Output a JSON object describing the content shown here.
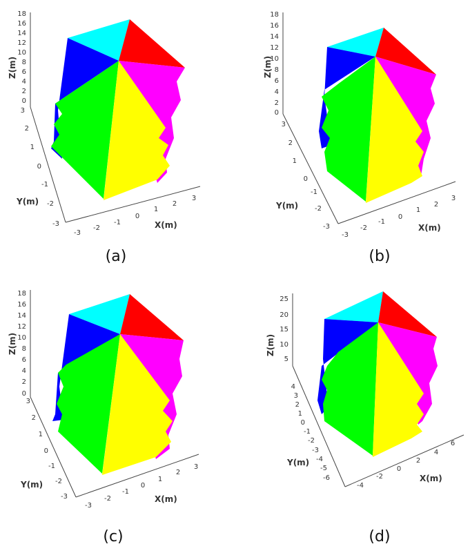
{
  "figure": {
    "panels": [
      {
        "caption": "(a)",
        "z_label": "Z(m)",
        "x_label": "X(m)",
        "y_label": "Y(m)",
        "z_ticks": [
          "18",
          "16",
          "14",
          "12",
          "10",
          "8",
          "6",
          "4",
          "2",
          "0"
        ],
        "y_ticks": [
          "3",
          "2",
          "1",
          "0",
          "-1",
          "-2",
          "-3"
        ],
        "x_ticks": [
          "-3",
          "-2",
          "-1",
          "0",
          "1",
          "2",
          "3"
        ]
      },
      {
        "caption": "(b)",
        "z_label": "Z(m)",
        "x_label": "X(m)",
        "y_label": "Y(m)",
        "z_ticks": [
          "18",
          "16",
          "14",
          "12",
          "10",
          "8",
          "6",
          "4",
          "2",
          "0"
        ],
        "y_ticks": [
          "3",
          "2",
          "1",
          "0",
          "-1",
          "-2",
          "-3"
        ],
        "x_ticks": [
          "-3",
          "-2",
          "-1",
          "0",
          "1",
          "2",
          "3"
        ]
      },
      {
        "caption": "(c)",
        "z_label": "Z(m)",
        "x_label": "X(m)",
        "y_label": "Y(m)",
        "z_ticks": [
          "18",
          "16",
          "14",
          "12",
          "10",
          "8",
          "6",
          "4",
          "2",
          "0"
        ],
        "y_ticks": [
          "3",
          "2",
          "1",
          "0",
          "-1",
          "-2",
          "-3"
        ],
        "x_ticks": [
          "-3",
          "-2",
          "-1",
          "0",
          "1",
          "2",
          "3"
        ]
      },
      {
        "caption": "(d)",
        "z_label": "Z(m)",
        "x_label": "X(m)",
        "y_label": "Y(m)",
        "z_ticks": [
          "25",
          "20",
          "15",
          "10",
          "5"
        ],
        "y_ticks": [
          "4",
          "3",
          "2",
          "1",
          "0",
          "-1",
          "-2",
          "-3",
          "-4",
          "-5",
          "-6"
        ],
        "x_ticks": [
          "-4",
          "-2",
          "0",
          "2",
          "4",
          "6"
        ]
      }
    ],
    "colors": {
      "cyan": "#00FFFF",
      "red": "#FF0000",
      "blue": "#0000FF",
      "magenta": "#FF00FF",
      "green": "#00FF00",
      "yellow": "#FFFF00"
    }
  }
}
